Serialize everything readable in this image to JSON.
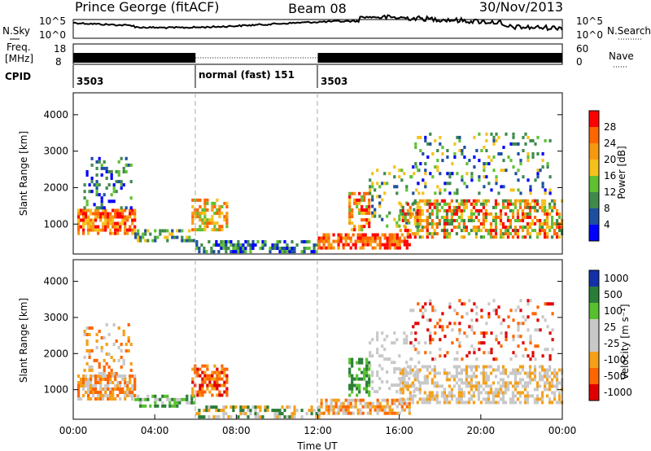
{
  "header": {
    "station": "Prince George (fitACF)",
    "beam": "Beam 08",
    "date": "30/Nov/2013"
  },
  "top_panel": {
    "left_label_nsky": "N.Sky",
    "right_label_nsearch": "N.Search",
    "sky_ticks": [
      "10^5",
      "10^0"
    ],
    "freq_label_line1": "Freq.",
    "freq_label_line2": "[MHz]",
    "freq_ticks": [
      "18",
      "8"
    ],
    "nave_label": "Nave",
    "nave_ticks": [
      "60",
      "0"
    ],
    "cpid_label": "CPID",
    "cpid_segments": [
      {
        "label": "3503",
        "start_hour": 0,
        "end_hour": 6
      },
      {
        "label": "normal (fast) 151",
        "start_hour": 6,
        "end_hour": 12
      },
      {
        "label": "3503",
        "start_hour": 12,
        "end_hour": 24
      }
    ]
  },
  "colors": {
    "power": [
      "#0000ff",
      "#1d4fa0",
      "#3f8a4b",
      "#60c034",
      "#f5c21b",
      "#f59a10",
      "#ff6600",
      "#ff0000"
    ],
    "velocity": [
      "#1330a8",
      "#2a7d37",
      "#58c02e",
      "#c8c8c8",
      "#c8c8c8",
      "#f5a019",
      "#ff6600",
      "#e00000"
    ],
    "ground_scatter": "#bfbfbf"
  },
  "chart_data": [
    {
      "type": "heatmap",
      "name": "power",
      "ylabel": "Slant Range [km]",
      "yticks": [
        1000,
        2000,
        3000,
        4000
      ],
      "ylim": [
        180,
        4600
      ],
      "xlim": [
        0,
        24
      ],
      "colorbar": {
        "label": "Power [dB]",
        "ticks": [
          "4",
          "8",
          "12",
          "16",
          "20",
          "24",
          "28"
        ],
        "range": [
          0,
          32
        ]
      }
    },
    {
      "type": "heatmap",
      "name": "velocity",
      "ylabel": "Slant Range [km]",
      "yticks": [
        1000,
        2000,
        3000,
        4000
      ],
      "ylim": [
        180,
        4600
      ],
      "xlim": [
        0,
        24
      ],
      "xticks": [
        "00:00",
        "04:00",
        "08:00",
        "12:00",
        "16:00",
        "20:00",
        "00:00"
      ],
      "xlabel": "Time UT",
      "colorbar": {
        "label": "Velocity [m s⁻¹]",
        "ticks": [
          "1000",
          "500",
          "100",
          "25",
          "-25",
          "-100",
          "-500",
          "-1000"
        ]
      }
    }
  ]
}
